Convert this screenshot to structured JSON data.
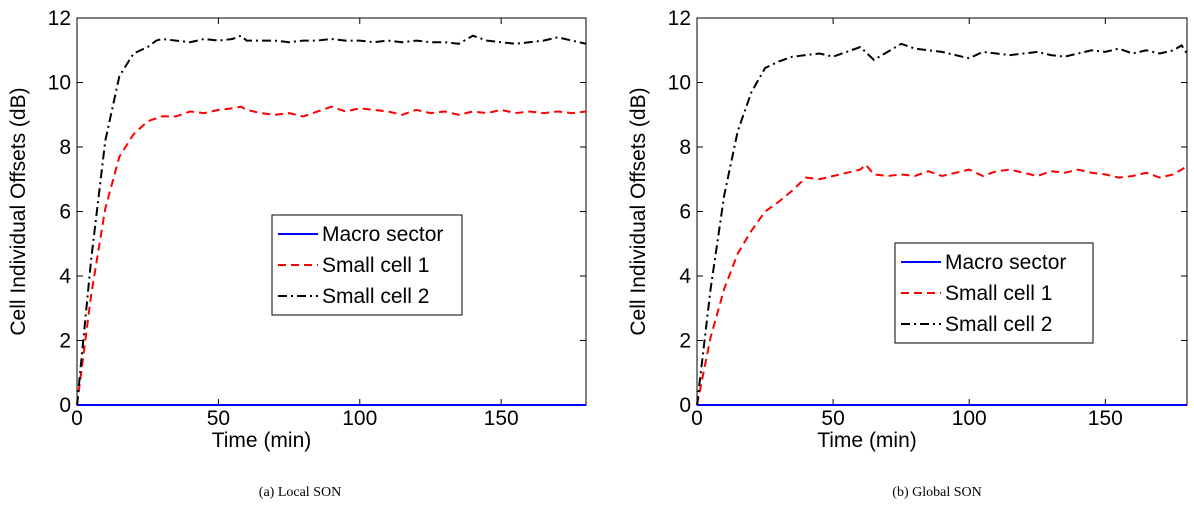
{
  "chart_data": [
    {
      "type": "line",
      "caption": "(a) Local SON",
      "xlabel": "Time (min)",
      "ylabel": "Cell Individual Offsets (dB)",
      "xlim": [
        0,
        180
      ],
      "ylim": [
        0,
        12
      ],
      "xticks": [
        0,
        50,
        100,
        150
      ],
      "yticks": [
        0,
        2,
        4,
        6,
        8,
        10,
        12
      ],
      "grid": false,
      "legend_position": "center-right",
      "series": [
        {
          "name": "Macro sector",
          "color": "#0000ff",
          "dash": "solid",
          "x": [
            0,
            180
          ],
          "y": [
            0,
            0
          ]
        },
        {
          "name": "Small cell 1",
          "color": "#ff0000",
          "dash": "dashed",
          "x": [
            0,
            5,
            10,
            15,
            20,
            25,
            30,
            35,
            40,
            45,
            50,
            55,
            58,
            60,
            65,
            70,
            75,
            80,
            85,
            90,
            95,
            100,
            105,
            110,
            115,
            120,
            125,
            130,
            135,
            140,
            145,
            150,
            155,
            160,
            165,
            170,
            175,
            180
          ],
          "y": [
            0,
            3.4,
            6.1,
            7.7,
            8.4,
            8.8,
            8.95,
            8.95,
            9.1,
            9.05,
            9.15,
            9.2,
            9.25,
            9.15,
            9.05,
            9.0,
            9.05,
            8.95,
            9.1,
            9.25,
            9.1,
            9.2,
            9.15,
            9.1,
            9.0,
            9.15,
            9.05,
            9.1,
            9.0,
            9.1,
            9.05,
            9.15,
            9.05,
            9.1,
            9.05,
            9.1,
            9.05,
            9.1
          ]
        },
        {
          "name": "Small cell 2",
          "color": "#000000",
          "dash": "dashdot",
          "x": [
            0,
            5,
            10,
            15,
            20,
            25,
            28,
            30,
            35,
            40,
            45,
            50,
            55,
            58,
            60,
            65,
            70,
            75,
            80,
            85,
            90,
            95,
            100,
            105,
            110,
            115,
            120,
            125,
            130,
            135,
            140,
            145,
            150,
            155,
            160,
            165,
            170,
            175,
            180
          ],
          "y": [
            0,
            4.5,
            8.2,
            10.2,
            10.9,
            11.1,
            11.3,
            11.35,
            11.3,
            11.25,
            11.35,
            11.3,
            11.35,
            11.45,
            11.3,
            11.3,
            11.3,
            11.25,
            11.3,
            11.3,
            11.35,
            11.3,
            11.3,
            11.25,
            11.3,
            11.25,
            11.3,
            11.25,
            11.25,
            11.2,
            11.45,
            11.3,
            11.25,
            11.2,
            11.25,
            11.3,
            11.4,
            11.3,
            11.2
          ]
        }
      ]
    },
    {
      "type": "line",
      "caption": "(b) Global SON",
      "xlabel": "Time (min)",
      "ylabel": "Cell Individual Offsets (dB)",
      "xlim": [
        0,
        180
      ],
      "ylim": [
        0,
        12
      ],
      "xticks": [
        0,
        50,
        100,
        150
      ],
      "yticks": [
        0,
        2,
        4,
        6,
        8,
        10,
        12
      ],
      "grid": false,
      "legend_position": "center-right",
      "series": [
        {
          "name": "Macro sector",
          "color": "#0000ff",
          "dash": "solid",
          "x": [
            0,
            180
          ],
          "y": [
            0,
            0
          ]
        },
        {
          "name": "Small cell 1",
          "color": "#ff0000",
          "dash": "dashed",
          "x": [
            0,
            5,
            10,
            15,
            20,
            25,
            30,
            35,
            40,
            45,
            50,
            55,
            60,
            62,
            65,
            70,
            75,
            80,
            85,
            90,
            95,
            100,
            105,
            110,
            115,
            120,
            125,
            130,
            135,
            140,
            145,
            150,
            155,
            160,
            165,
            170,
            175,
            180
          ],
          "y": [
            0,
            2.1,
            3.6,
            4.7,
            5.4,
            6.0,
            6.3,
            6.65,
            7.05,
            7.0,
            7.1,
            7.2,
            7.3,
            7.45,
            7.15,
            7.1,
            7.15,
            7.1,
            7.25,
            7.1,
            7.2,
            7.3,
            7.1,
            7.25,
            7.3,
            7.2,
            7.1,
            7.25,
            7.2,
            7.3,
            7.2,
            7.15,
            7.05,
            7.1,
            7.2,
            7.05,
            7.15,
            7.4
          ]
        },
        {
          "name": "Small cell 2",
          "color": "#000000",
          "dash": "dashdot",
          "x": [
            0,
            5,
            10,
            15,
            20,
            25,
            30,
            35,
            40,
            45,
            50,
            55,
            60,
            65,
            70,
            75,
            80,
            85,
            90,
            95,
            100,
            105,
            110,
            115,
            120,
            125,
            130,
            135,
            140,
            145,
            150,
            155,
            160,
            165,
            170,
            175,
            178,
            180
          ],
          "y": [
            0,
            3.6,
            6.5,
            8.5,
            9.7,
            10.45,
            10.65,
            10.8,
            10.85,
            10.9,
            10.8,
            10.95,
            11.1,
            10.7,
            10.95,
            11.2,
            11.05,
            11.0,
            10.95,
            10.85,
            10.75,
            10.95,
            10.9,
            10.85,
            10.9,
            10.95,
            10.85,
            10.8,
            10.9,
            11.0,
            10.95,
            11.05,
            10.9,
            11.0,
            10.9,
            11.0,
            11.15,
            10.9
          ]
        }
      ]
    }
  ]
}
